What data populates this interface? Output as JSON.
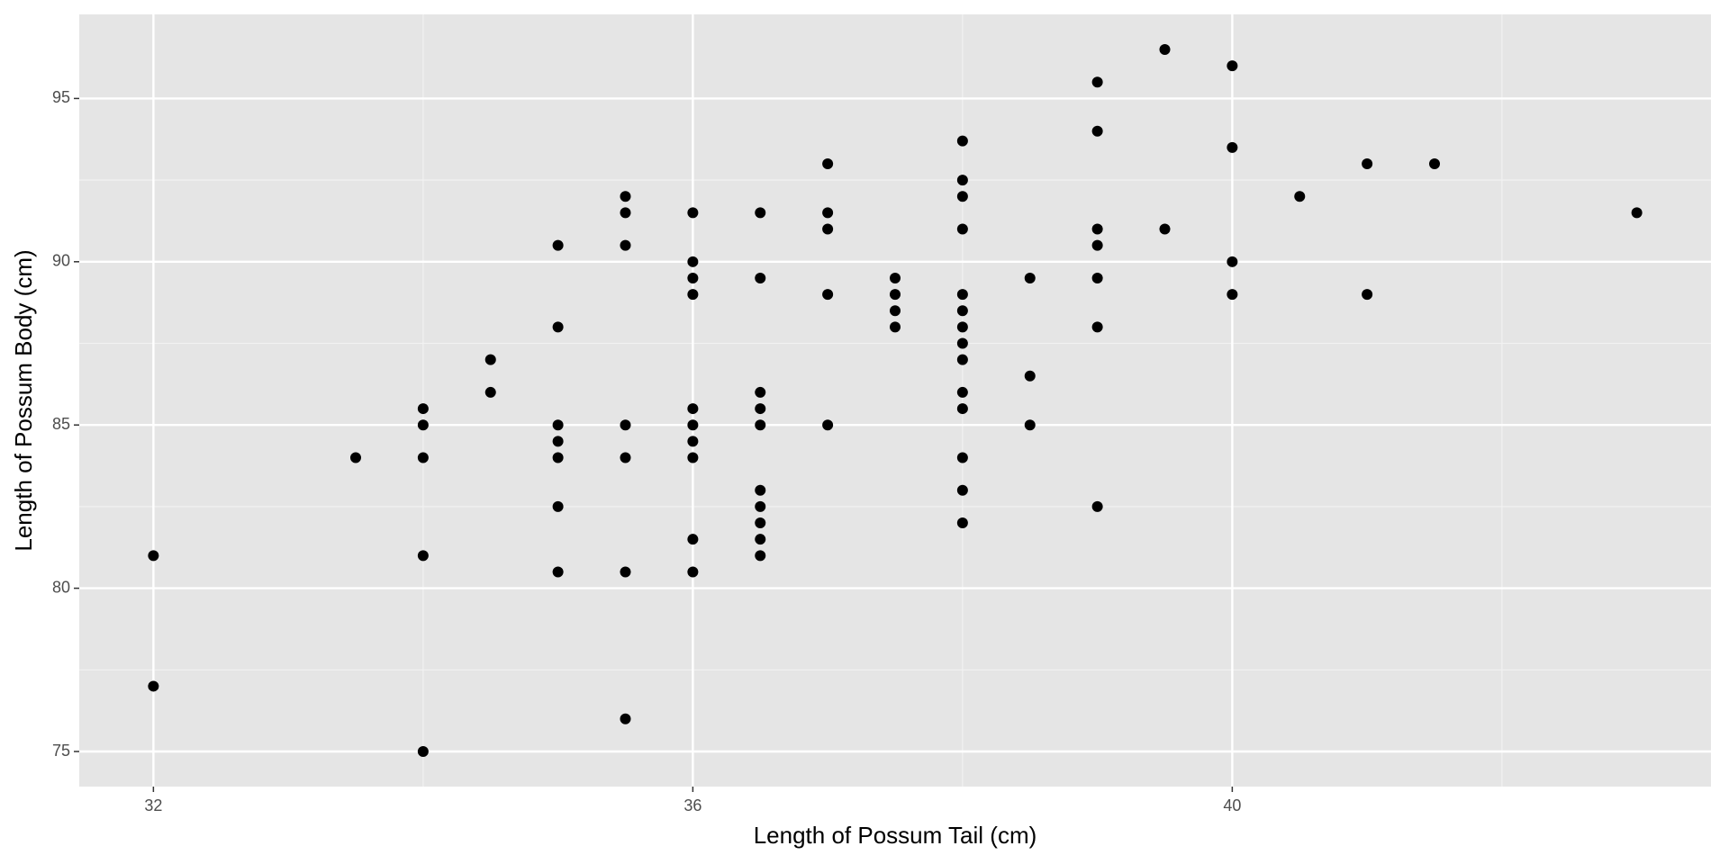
{
  "chart_data": {
    "type": "scatter",
    "x_label": "Length of Possum Tail (cm)",
    "y_label": "Length of Possum Body (cm)",
    "series": [
      {
        "color": "#000000",
        "x": [
          32,
          32,
          33.5,
          34,
          34,
          34,
          34,
          34,
          34.5,
          34.5,
          35,
          35,
          35,
          35,
          35,
          35,
          35,
          35.5,
          35.5,
          35.5,
          35.5,
          35.5,
          35.5,
          35.5,
          36,
          36,
          36,
          36,
          36,
          36,
          36,
          36,
          36,
          36,
          36.5,
          36.5,
          36.5,
          36.5,
          36.5,
          36.5,
          36.5,
          36.5,
          36.5,
          36.5,
          37,
          37,
          37,
          37,
          37,
          37.5,
          37.5,
          37.5,
          37.5,
          38,
          38,
          38,
          38,
          38,
          38,
          38,
          38,
          38,
          38,
          38,
          38,
          38,
          38,
          38.5,
          38.5,
          38.5,
          39,
          39,
          39,
          39,
          39,
          39,
          39,
          39.5,
          39.5,
          40,
          40,
          40,
          40,
          40.5,
          41,
          41,
          41.5,
          43
        ],
        "values": [
          81,
          77,
          84,
          85.5,
          85,
          84,
          81,
          75,
          87,
          86,
          90.5,
          88,
          85,
          84.5,
          84,
          82.5,
          80.5,
          92,
          91.5,
          90.5,
          85,
          84,
          80.5,
          76,
          91.5,
          90,
          89.5,
          89,
          85.5,
          85,
          84.5,
          84,
          81.5,
          80.5,
          91.5,
          89.5,
          86,
          85.5,
          85,
          83,
          82.5,
          82,
          81.5,
          81,
          93,
          91.5,
          91,
          89,
          85,
          89.5,
          89,
          88.5,
          88,
          93.7,
          92.5,
          92,
          91,
          89,
          88.5,
          88,
          87.5,
          87,
          86,
          85.5,
          84,
          83,
          82,
          89.5,
          86.5,
          85,
          95.5,
          94,
          91,
          90.5,
          89.5,
          88,
          82.5,
          96.5,
          91,
          96,
          93.5,
          90,
          89,
          92,
          93,
          89,
          93,
          91.5
        ]
      }
    ],
    "xlim": [
      31.45,
      43.55
    ],
    "xticks": [
      32,
      36,
      40
    ],
    "x_minor_ticks": [
      34,
      38,
      42
    ],
    "ylim": [
      73.925,
      97.575
    ],
    "yticks": [
      75,
      80,
      85,
      90,
      95
    ],
    "y_minor_ticks": [
      77.5,
      82.5,
      87.5,
      92.5
    ],
    "grid": true
  }
}
